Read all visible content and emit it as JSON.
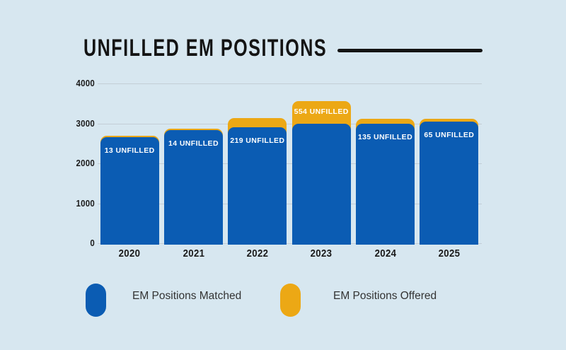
{
  "title": "UNFILLED EM POSITIONS",
  "colors": {
    "background": "#d7e7f0",
    "matched_blue": "#0b5cb3",
    "offered_yellow": "#eca815",
    "title_black": "#141414",
    "gridline": "#c3ced6",
    "axis_text": "#1a1a1a",
    "bar_label_text": "#ffffff",
    "legend_text": "#333333"
  },
  "legend": {
    "items": [
      {
        "label": "EM Positions Matched",
        "swatch": "blue-pill",
        "color": "#0b5cb3"
      },
      {
        "label": "EM Positions Offered",
        "swatch": "yellow-pill",
        "color": "#eca815"
      }
    ]
  },
  "chart_data": {
    "type": "bar",
    "stacked": true,
    "title": "UNFILLED EM POSITIONS",
    "categories": [
      "2020",
      "2021",
      "2022",
      "2023",
      "2024",
      "2025"
    ],
    "series": [
      {
        "name": "EM Positions Matched",
        "color": "#0b5cb3",
        "values": [
          2652,
          2826,
          2906,
          3000,
          2985,
          3042
        ]
      },
      {
        "name": "EM Positions Offered",
        "color": "#eca815",
        "values": [
          2665,
          2840,
          3125,
          3554,
          3120,
          3107
        ]
      }
    ],
    "unfilled_counts": [
      13,
      14,
      219,
      554,
      135,
      65
    ],
    "bar_labels": [
      "13 UNFILLED",
      "14 UNFILLED",
      "219 UNFILLED",
      "554 UNFILLED",
      "135 UNFILLED",
      "65 UNFILLED"
    ],
    "y_ticks": [
      0,
      1000,
      2000,
      3000,
      4000
    ],
    "ylim": [
      0,
      4000
    ],
    "grid": true,
    "legend_position": "bottom"
  }
}
